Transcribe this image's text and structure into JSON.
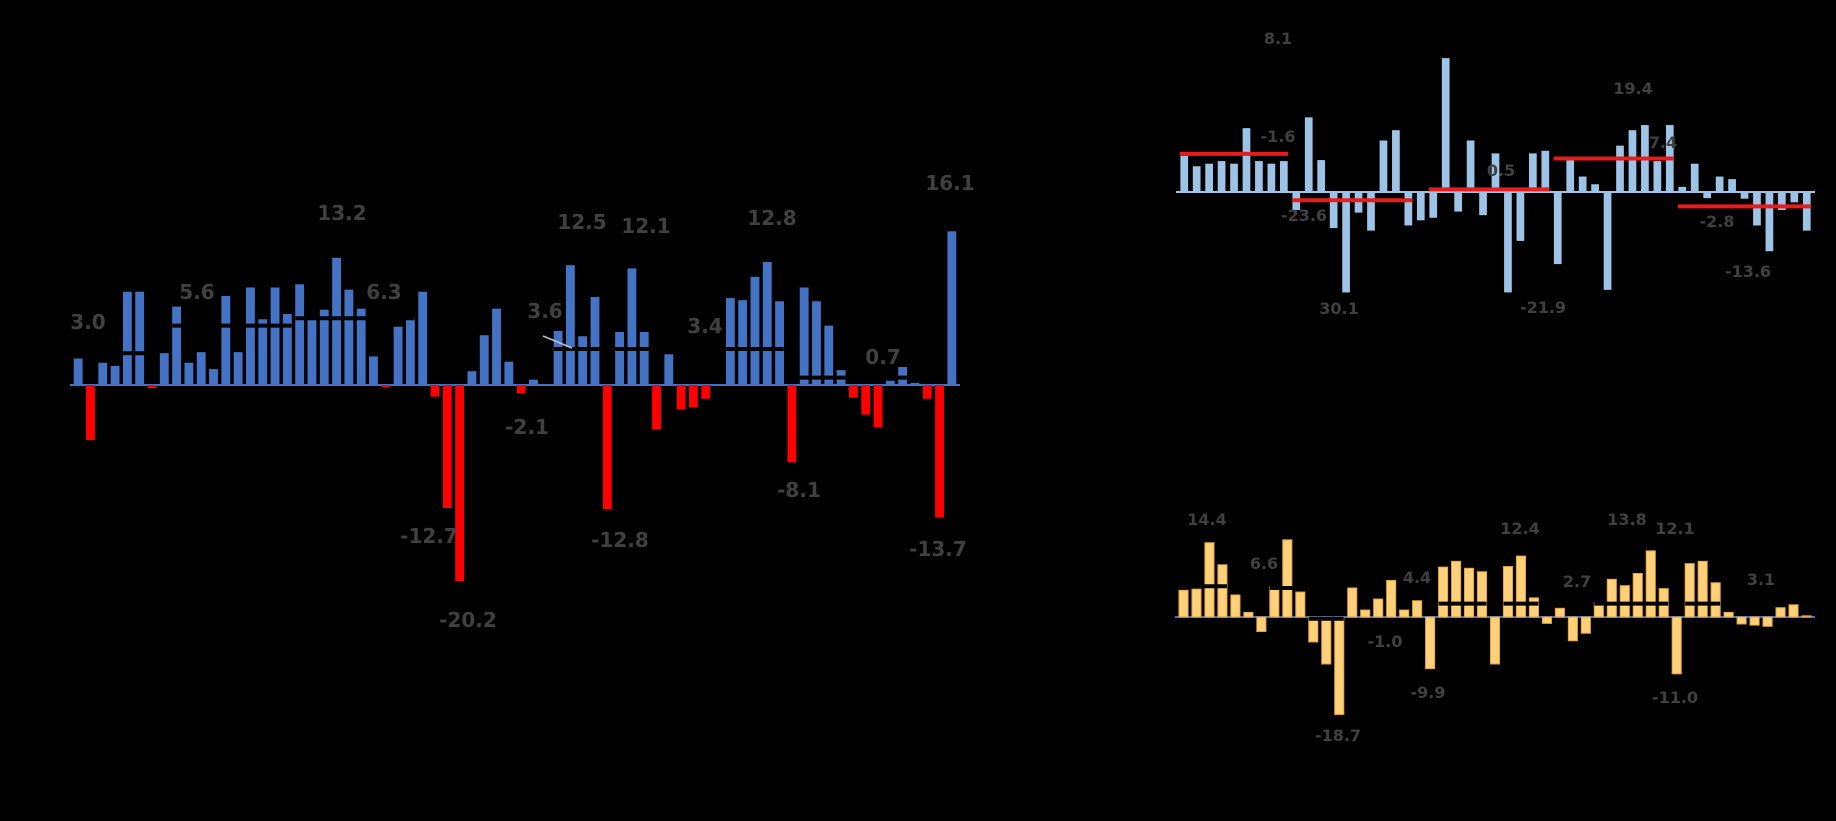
{
  "chart_data": [
    {
      "type": "bar",
      "colors": {
        "positive": "#4472C4",
        "negative": "#FF0000",
        "average_line": "#000000"
      },
      "values": [
        2.5,
        -5.2,
        2.1,
        1.8,
        8.8,
        8.8,
        -0.3,
        3.0,
        7.4,
        2.1,
        3.1,
        1.5,
        8.4,
        3.1,
        9.2,
        6.2,
        9.2,
        6.7,
        9.5,
        6.2,
        7.1,
        12.0,
        9.0,
        7.2,
        2.7,
        -0.2,
        5.5,
        6.4,
        8.8,
        -1.1,
        -11.6,
        -18.5,
        1.3,
        4.7,
        7.2,
        2.2,
        -0.8,
        0.5,
        0.0,
        5.1,
        11.3,
        4.6,
        8.3,
        -11.7,
        5.0,
        11.0,
        5.0,
        -4.2,
        2.9,
        -2.3,
        -2.1,
        -1.3,
        0.0,
        8.2,
        8.0,
        10.2,
        11.6,
        7.9,
        -7.3,
        9.2,
        7.9,
        5.6,
        1.4,
        -1.2,
        -2.8,
        -4.0,
        0.4,
        1.7,
        0.2,
        -1.3,
        -12.5,
        14.5
      ],
      "averages": [
        {
          "value": 3.0,
          "label": "3.0"
        },
        {
          "value": 5.6,
          "label": "5.6"
        },
        {
          "value": 13.2,
          "label": "13.2"
        },
        {
          "value": 6.3,
          "label": "6.3"
        },
        {
          "value": -12.7,
          "label": "-12.7"
        },
        {
          "value": -20.2,
          "label": "-20.2"
        },
        {
          "value": -2.1,
          "label": "-2.1"
        },
        {
          "value": 3.6,
          "label": "3.6"
        },
        {
          "value": 12.5,
          "label": "12.5"
        },
        {
          "value": 12.1,
          "label": "12.1"
        },
        {
          "value": -12.8,
          "label": "-12.8"
        },
        {
          "value": 3.4,
          "label": "3.4"
        },
        {
          "value": 12.8,
          "label": "12.8"
        },
        {
          "value": -8.1,
          "label": "-8.1"
        },
        {
          "value": 0.7,
          "label": "0.7"
        },
        {
          "value": -13.7,
          "label": "-13.7"
        },
        {
          "value": 16.1,
          "label": "16.1"
        }
      ],
      "average_lines": [
        {
          "from": 0,
          "to": 6,
          "value": 3.0
        },
        {
          "from": 8,
          "to": 17,
          "value": 5.6
        },
        {
          "from": 18,
          "to": 27,
          "value": 6.3
        },
        {
          "from": 39,
          "to": 48,
          "value": 3.4
        },
        {
          "from": 52,
          "to": 57,
          "value": 3.4
        },
        {
          "from": 58,
          "to": 68,
          "value": 0.7
        }
      ],
      "ylim": [
        -22,
        18
      ],
      "title": "",
      "xlabel": "",
      "ylabel": ""
    },
    {
      "type": "bar",
      "colors": {
        "bars": "#9DC3E6",
        "average_line": "#E81C1C"
      },
      "values": [
        7.0,
        5.0,
        5.5,
        6.0,
        5.5,
        12.4,
        6.0,
        5.5,
        6.0,
        -3.5,
        14.5,
        6.2,
        -7.0,
        -19.5,
        -4.0,
        -7.5,
        10.0,
        12.0,
        -6.5,
        -5.5,
        -5.0,
        26.0,
        -3.8,
        10.0,
        -4.5,
        7.5,
        -19.5,
        -9.5,
        7.5,
        8.0,
        -14.0,
        6.5,
        3.0,
        1.5,
        -19.0,
        9.0,
        12.0,
        13.0,
        6.0,
        13.0,
        1.0,
        5.5,
        -1.2,
        3.0,
        2.5,
        -1.3,
        -6.5,
        -11.5,
        -3.5,
        -2.0,
        -7.5
      ],
      "averages": [
        {
          "value": 8.1,
          "label": "8.1"
        },
        {
          "value": -1.6,
          "label": "-1.6"
        },
        {
          "value": -23.6,
          "label": "-23.6"
        },
        {
          "value": 30.1,
          "label": "30.1"
        },
        {
          "value": 0.5,
          "label": "0.5"
        },
        {
          "value": -21.9,
          "label": "-21.9"
        },
        {
          "value": 19.4,
          "label": "19.4"
        },
        {
          "value": 7.4,
          "label": "7.4"
        },
        {
          "value": -2.8,
          "label": "-2.8"
        },
        {
          "value": -13.6,
          "label": "-13.6"
        }
      ],
      "average_lines": [
        {
          "from": 0,
          "to": 8,
          "value": 7.4
        },
        {
          "from": 9,
          "to": 18,
          "value": -1.6
        },
        {
          "from": 20,
          "to": 29,
          "value": 0.5
        },
        {
          "from": 30,
          "to": 39,
          "value": 6.5
        },
        {
          "from": 40,
          "to": 50,
          "value": -2.8
        }
      ],
      "ylim": [
        -28,
        35
      ],
      "title": "",
      "xlabel": "",
      "ylabel": ""
    },
    {
      "type": "bar",
      "colors": {
        "bars": "#FFD17A",
        "edges": "#E9A23B",
        "average_line": "#000000"
      },
      "values": [
        4.6,
        4.8,
        12.8,
        9.0,
        3.8,
        0.8,
        -2.5,
        5.2,
        13.3,
        4.3,
        -4.3,
        -8.1,
        -16.8,
        5.0,
        1.2,
        3.1,
        6.3,
        1.2,
        2.8,
        -8.9,
        8.6,
        9.6,
        8.4,
        7.8,
        -8.1,
        8.7,
        10.5,
        3.3,
        -1.1,
        1.5,
        -4.1,
        -2.8,
        2.5,
        6.5,
        5.4,
        7.5,
        11.4,
        4.9,
        -9.8,
        9.2,
        9.6,
        5.9,
        0.8,
        -1.2,
        -1.4,
        -1.6,
        1.6,
        2.1,
        0.2
      ],
      "averages": [
        {
          "value": 14.4,
          "label": "14.4"
        },
        {
          "value": 6.6,
          "label": "6.6"
        },
        {
          "value": -18.7,
          "label": "-18.7"
        },
        {
          "value": -1.0,
          "label": "-1.0"
        },
        {
          "value": 4.4,
          "label": "4.4"
        },
        {
          "value": -9.9,
          "label": "-9.9"
        },
        {
          "value": 12.4,
          "label": "12.4"
        },
        {
          "value": 2.7,
          "label": "2.7"
        },
        {
          "value": 13.8,
          "label": "13.8"
        },
        {
          "value": 12.1,
          "label": "12.1"
        },
        {
          "value": -11.0,
          "label": "-11.0"
        },
        {
          "value": 3.1,
          "label": "3.1"
        }
      ],
      "average_lines": [
        {
          "from": 1,
          "to": 3,
          "value": 5.3
        },
        {
          "from": 7,
          "to": 9,
          "value": 5.0
        },
        {
          "from": 10,
          "to": 12,
          "value": -0.3
        },
        {
          "from": 20,
          "to": 23,
          "value": 2.3
        },
        {
          "from": 25,
          "to": 27,
          "value": 2.3
        },
        {
          "from": 32,
          "to": 37,
          "value": 2.3
        },
        {
          "from": 39,
          "to": 41,
          "value": 2.3
        }
      ],
      "ylim": [
        -22,
        18
      ],
      "title": "",
      "xlabel": "",
      "ylabel": ""
    }
  ]
}
